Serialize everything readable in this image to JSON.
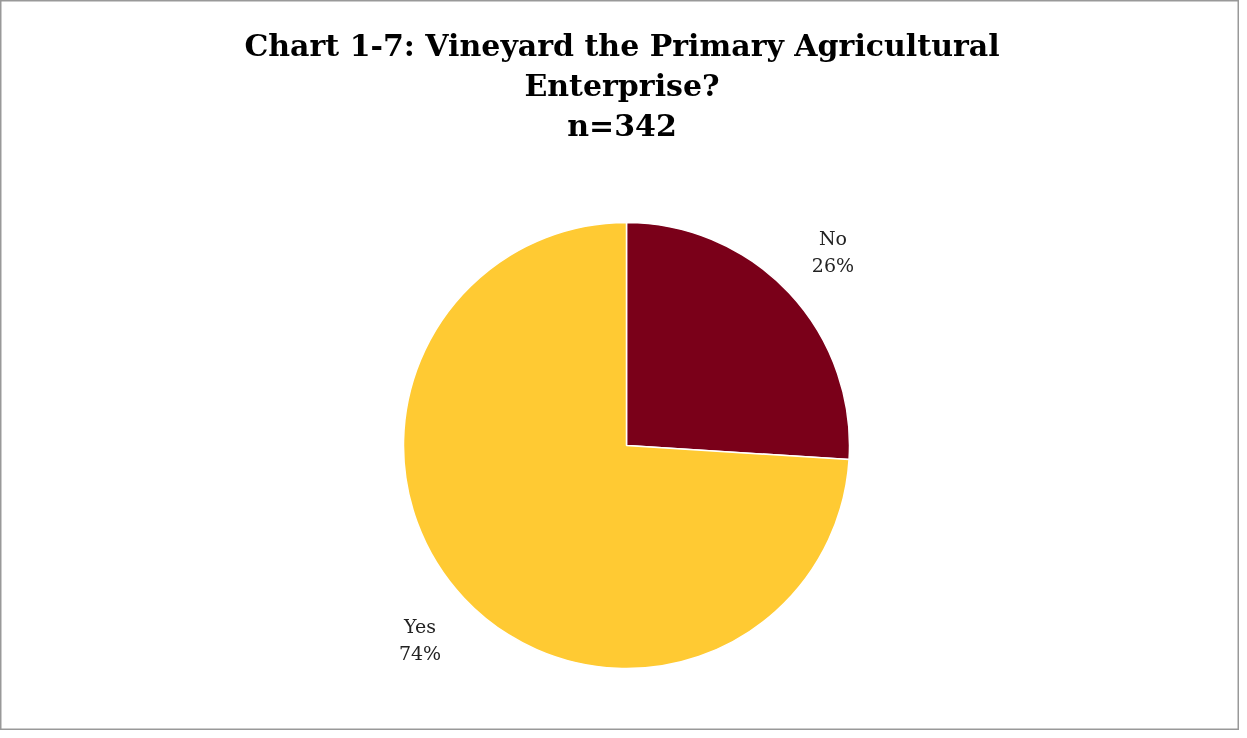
{
  "chart_data": {
    "type": "pie",
    "title": "Chart 1-7: Vineyard the Primary Agricultural Enterprise?",
    "subtitle": "n=342",
    "categories": [
      "No",
      "Yes"
    ],
    "values": [
      26,
      74
    ],
    "colors": [
      "#7a0019",
      "#ffca33"
    ],
    "value_labels": [
      "26%",
      "74%"
    ],
    "legend": false
  }
}
